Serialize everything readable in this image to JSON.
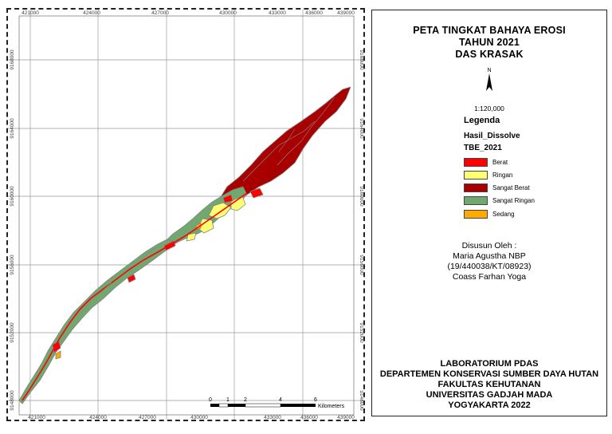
{
  "map": {
    "x_ticks": [
      "421000",
      "424000",
      "427000",
      "430000",
      "433000",
      "436000",
      "439000"
    ],
    "y_ticks": [
      "9168000",
      "9164000",
      "9160000",
      "9156000",
      "9152000",
      "9148000"
    ],
    "scale_bar": {
      "labels": [
        "0",
        "1",
        "2",
        "4",
        "6"
      ],
      "unit": "Kilometers"
    },
    "colors": {
      "berat": "#ff0000",
      "ringan": "#ffff73",
      "sangat_berat": "#a80000",
      "sangat_ringan": "#70a870",
      "sedang": "#ffaa00",
      "boundary": "#808080"
    }
  },
  "panel": {
    "title": [
      "PETA TINGKAT BAHAYA EROSI",
      "TAHUN 2021",
      "DAS KRASAK"
    ],
    "north_label": "N",
    "scale_text": "1:120,000",
    "legend": {
      "title": "Legenda",
      "layer": "Hasil_Dissolve",
      "field": "TBE_2021",
      "items": [
        {
          "label": "Berat",
          "color": "#ff0000"
        },
        {
          "label": "Ringan",
          "color": "#ffff73"
        },
        {
          "label": "Sangat Berat",
          "color": "#a80000"
        },
        {
          "label": "Sangat Ringan",
          "color": "#70a870"
        },
        {
          "label": "Sedang",
          "color": "#ffaa00"
        }
      ]
    },
    "author": [
      "Disusun Oleh :",
      "Maria Agustha NBP",
      "(19/440038/KT/08923)",
      "Coass Farhan Yoga"
    ],
    "institution": [
      "LABORATORIUM PDAS",
      "DEPARTEMEN KONSERVASI SUMBER DAYA HUTAN",
      "FAKULTAS KEHUTANAN",
      "UNIVERSITAS GADJAH MADA",
      "YOGYAKARTA 2022"
    ]
  }
}
